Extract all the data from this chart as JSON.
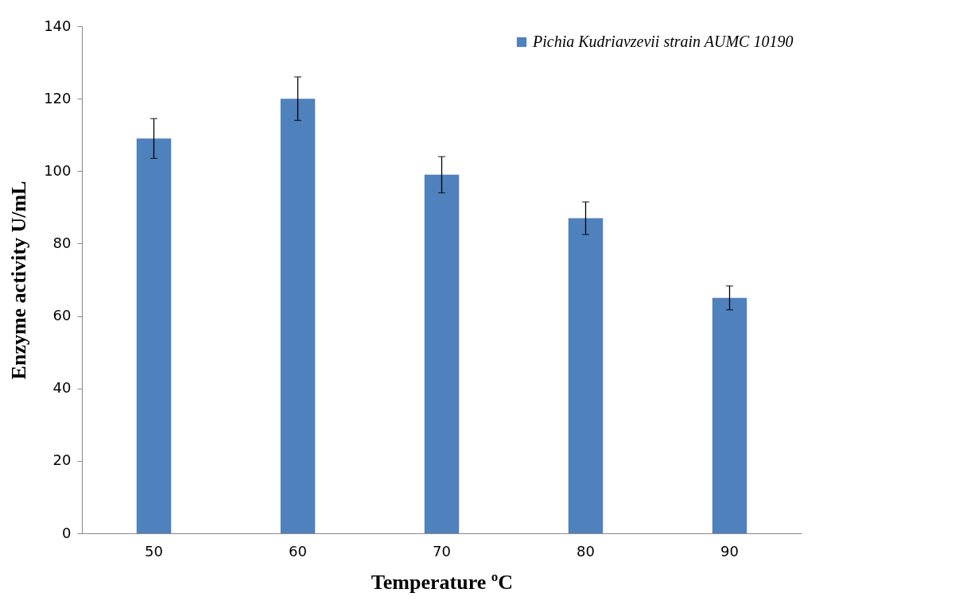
{
  "chart_data": {
    "type": "bar",
    "xlabel": "Temperature ºC",
    "ylabel": "Enzyme activity U/mL",
    "categories": [
      "50",
      "60",
      "70",
      "80",
      "90"
    ],
    "series": [
      {
        "name": "Pichia Kudriavzevii strain AUMC 10190",
        "color": "#4f81bd",
        "values": [
          109,
          120,
          99,
          87,
          65
        ],
        "errors": [
          5.5,
          6,
          5,
          4.5,
          3.3
        ]
      }
    ],
    "ylim": [
      0,
      140
    ],
    "yticks": [
      0,
      20,
      40,
      60,
      80,
      100,
      120,
      140
    ],
    "legend": "top right"
  }
}
